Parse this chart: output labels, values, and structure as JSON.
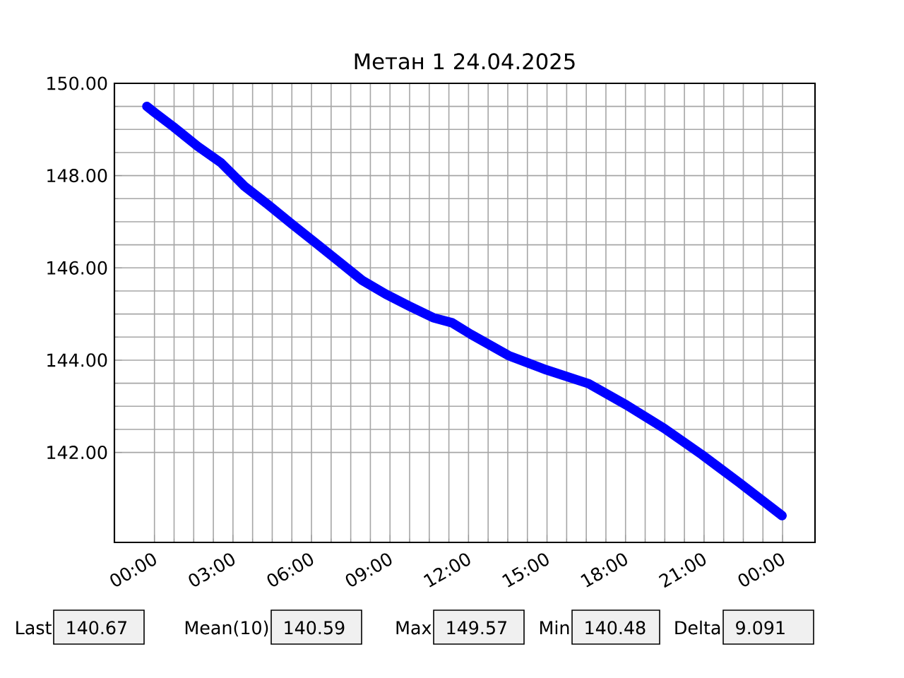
{
  "chart_data": {
    "type": "line",
    "title": "Метан 1 24.04.2025",
    "x": [
      -0.29,
      0.02,
      0.74,
      1.64,
      2.54,
      3.44,
      4.34,
      5.23,
      6.14,
      7.04,
      7.94,
      8.84,
      9.74,
      10.65,
      11.37,
      12.09,
      13.53,
      14.97,
      16.59,
      18.03,
      19.48,
      20.92,
      22.36,
      23.98
    ],
    "series": [
      {
        "color": "#0000ff",
        "values": [
          149.5,
          149.36,
          149.05,
          148.64,
          148.28,
          147.77,
          147.37,
          146.96,
          146.55,
          146.14,
          145.73,
          145.43,
          145.17,
          144.92,
          144.81,
          144.56,
          144.1,
          143.79,
          143.49,
          143.03,
          142.52,
          141.95,
          141.34,
          140.63
        ]
      }
    ],
    "xlim": [
      -1.53,
      25.24
    ],
    "ylim": [
      140.05,
      150
    ],
    "xticks": [
      {
        "value": 0,
        "label": "00:00"
      },
      {
        "value": 3,
        "label": "03:00"
      },
      {
        "value": 6,
        "label": "06:00"
      },
      {
        "value": 9,
        "label": "09:00"
      },
      {
        "value": 12,
        "label": "12:00"
      },
      {
        "value": 15,
        "label": "15:00"
      },
      {
        "value": 18,
        "label": "18:00"
      },
      {
        "value": 21,
        "label": "21:00"
      },
      {
        "value": 24,
        "label": "00:00"
      }
    ],
    "yticks": [
      {
        "value": 142,
        "label": "142.00"
      },
      {
        "value": 144,
        "label": "144.00"
      },
      {
        "value": 146,
        "label": "146.00"
      },
      {
        "value": 148,
        "label": "148.00"
      },
      {
        "value": 150,
        "label": "150.00"
      }
    ],
    "grid": true,
    "annotations": [
      "Last",
      "140.67",
      "Mean(10)",
      "140.59",
      "Max",
      "149.57",
      "Min",
      "140.48",
      "Delta",
      "9.091"
    ]
  }
}
